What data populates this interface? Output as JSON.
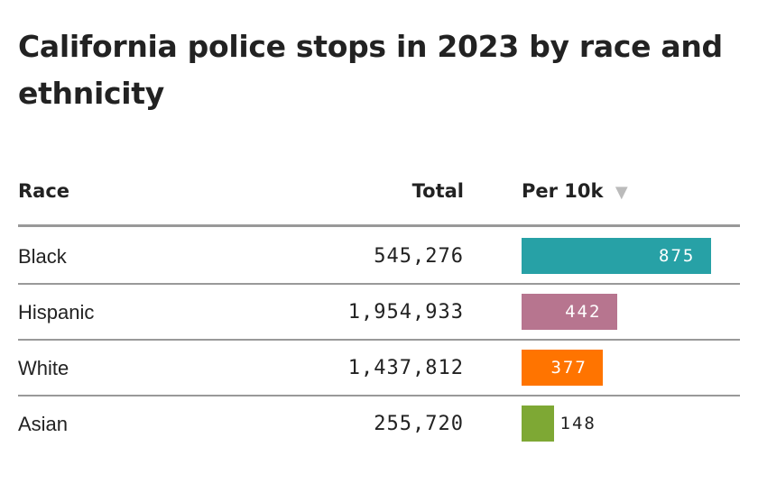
{
  "chart_data": {
    "type": "table",
    "title": "California police stops in 2023 by race and ethnicity",
    "columns": [
      "Race",
      "Total",
      "Per 10k"
    ],
    "sort_indicator": "▼",
    "rows": [
      {
        "race": "Black",
        "total": "545,276",
        "per10k": 875,
        "per10k_label": "875",
        "color": "#27a1a6"
      },
      {
        "race": "Hispanic",
        "total": "1,954,933",
        "per10k": 442,
        "per10k_label": "442",
        "color": "#b7758f"
      },
      {
        "race": "White",
        "total": "1,437,812",
        "per10k": 377,
        "per10k_label": "377",
        "color": "#ff7400"
      },
      {
        "race": "Asian",
        "total": "255,720",
        "per10k": 148,
        "per10k_label": "148",
        "color": "#7ea834"
      }
    ],
    "max": 875
  }
}
